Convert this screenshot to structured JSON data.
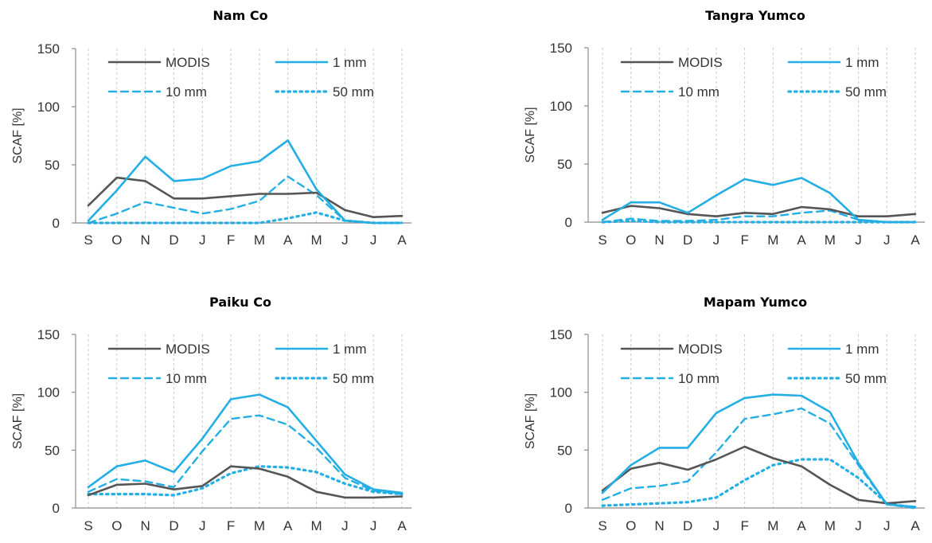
{
  "chart_data": [
    {
      "type": "line",
      "title": "Nam Co",
      "xlabel": "",
      "ylabel": "SCAF [%]",
      "ylim": [
        0,
        150
      ],
      "yticks": [
        0,
        50,
        100,
        150
      ],
      "categories": [
        "S",
        "O",
        "N",
        "D",
        "J",
        "F",
        "M",
        "A",
        "M",
        "J",
        "J",
        "A"
      ],
      "grid": "vertical dashed",
      "legend": "top, two columns",
      "series": [
        {
          "name": "MODIS",
          "values": [
            15,
            39,
            36,
            21,
            21,
            23,
            25,
            25,
            26,
            11,
            5,
            6
          ]
        },
        {
          "name": "1 mm",
          "values": [
            2,
            28,
            57,
            36,
            38,
            49,
            53,
            71,
            29,
            2,
            0,
            0
          ]
        },
        {
          "name": "10 mm",
          "values": [
            0,
            8,
            18,
            13,
            8,
            12,
            19,
            40,
            24,
            2,
            0,
            0
          ]
        },
        {
          "name": "50 mm",
          "values": [
            0,
            0,
            0,
            0,
            0,
            0,
            0,
            4,
            9,
            2,
            0,
            0
          ]
        }
      ]
    },
    {
      "type": "line",
      "title": "Tangra Yumco",
      "xlabel": "",
      "ylabel": "SCAF [%]",
      "ylim": [
        0,
        150
      ],
      "yticks": [
        0,
        50,
        100,
        150
      ],
      "categories": [
        "S",
        "O",
        "N",
        "D",
        "J",
        "F",
        "M",
        "A",
        "M",
        "J",
        "J",
        "A"
      ],
      "grid": "vertical dashed",
      "legend": "top, two columns",
      "series": [
        {
          "name": "MODIS",
          "values": [
            8,
            14,
            12,
            7,
            5,
            8,
            7,
            13,
            11,
            5,
            5,
            7
          ]
        },
        {
          "name": "1 mm",
          "values": [
            2,
            17,
            17,
            8,
            23,
            37,
            32,
            38,
            25,
            2,
            0,
            0
          ]
        },
        {
          "name": "10 mm",
          "values": [
            0,
            3,
            1,
            1,
            2,
            5,
            5,
            8,
            10,
            2,
            0,
            0
          ]
        },
        {
          "name": "50 mm",
          "values": [
            0,
            1,
            0,
            0,
            0,
            0,
            0,
            0,
            0,
            0,
            0,
            0
          ]
        }
      ]
    },
    {
      "type": "line",
      "title": "Paiku Co",
      "xlabel": "",
      "ylabel": "SCAF [%]",
      "ylim": [
        0,
        150
      ],
      "yticks": [
        0,
        50,
        100,
        150
      ],
      "categories": [
        "S",
        "O",
        "N",
        "D",
        "J",
        "F",
        "M",
        "A",
        "M",
        "J",
        "J",
        "A"
      ],
      "grid": "vertical dashed",
      "legend": "top, two columns",
      "series": [
        {
          "name": "MODIS",
          "values": [
            11,
            20,
            21,
            16,
            19,
            36,
            34,
            27,
            14,
            9,
            9,
            10
          ]
        },
        {
          "name": "1 mm",
          "values": [
            18,
            36,
            41,
            31,
            60,
            94,
            98,
            87,
            58,
            29,
            16,
            13
          ]
        },
        {
          "name": "10 mm",
          "values": [
            14,
            25,
            23,
            18,
            49,
            77,
            80,
            72,
            52,
            26,
            15,
            12
          ]
        },
        {
          "name": "50 mm",
          "values": [
            12,
            12,
            12,
            11,
            17,
            30,
            36,
            35,
            31,
            21,
            14,
            12
          ]
        }
      ]
    },
    {
      "type": "line",
      "title": "Mapam Yumco",
      "xlabel": "",
      "ylabel": "SCAF [%]",
      "ylim": [
        0,
        150
      ],
      "yticks": [
        0,
        50,
        100,
        150
      ],
      "categories": [
        "S",
        "O",
        "N",
        "D",
        "J",
        "F",
        "M",
        "A",
        "M",
        "J",
        "J",
        "A"
      ],
      "grid": "vertical dashed",
      "legend": "top, two columns",
      "series": [
        {
          "name": "MODIS",
          "values": [
            15,
            34,
            39,
            33,
            42,
            53,
            43,
            36,
            20,
            7,
            4,
            6
          ]
        },
        {
          "name": "1 mm",
          "values": [
            13,
            37,
            52,
            52,
            82,
            95,
            98,
            97,
            83,
            39,
            3,
            1
          ]
        },
        {
          "name": "10 mm",
          "values": [
            7,
            17,
            19,
            23,
            48,
            77,
            81,
            86,
            73,
            37,
            3,
            0
          ]
        },
        {
          "name": "50 mm",
          "values": [
            2,
            3,
            4,
            5,
            9,
            24,
            37,
            42,
            42,
            26,
            4,
            0
          ]
        }
      ]
    }
  ],
  "colors": {
    "MODIS": "#555555",
    "1 mm": "#23aee4",
    "10 mm": "#23aee4",
    "50 mm": "#23aee4",
    "axis": "#8c8c8c",
    "grid": "#c8c8c8"
  }
}
